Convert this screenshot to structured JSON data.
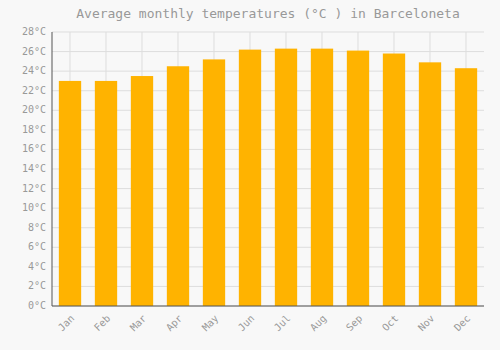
{
  "chart_data": {
    "type": "bar",
    "title": "Average monthly temperatures (°C ) in Barceloneta",
    "categories": [
      "Jan",
      "Feb",
      "Mar",
      "Apr",
      "May",
      "Jun",
      "Jul",
      "Aug",
      "Sep",
      "Oct",
      "Nov",
      "Dec"
    ],
    "values": [
      23.0,
      23.0,
      23.5,
      24.5,
      25.2,
      26.2,
      26.3,
      26.3,
      26.1,
      25.8,
      24.9,
      24.3
    ],
    "color": "#FFB300",
    "ylim": [
      0,
      28
    ],
    "yticks": [
      {
        "value": 0,
        "label": "0°C"
      },
      {
        "value": 2,
        "label": "2°C"
      },
      {
        "value": 4,
        "label": "4°C"
      },
      {
        "value": 6,
        "label": "6°C"
      },
      {
        "value": 8,
        "label": "8°C"
      },
      {
        "value": 10,
        "label": "10°C"
      },
      {
        "value": 12,
        "label": "12°C"
      },
      {
        "value": 14,
        "label": "14°C"
      },
      {
        "value": 16,
        "label": "16°C"
      },
      {
        "value": 18,
        "label": "18°C"
      },
      {
        "value": 20,
        "label": "20°C"
      },
      {
        "value": 22,
        "label": "22°C"
      },
      {
        "value": 24,
        "label": "24°C"
      },
      {
        "value": 26,
        "label": "26°C"
      },
      {
        "value": 28,
        "label": "28°C"
      }
    ],
    "grid": true
  }
}
